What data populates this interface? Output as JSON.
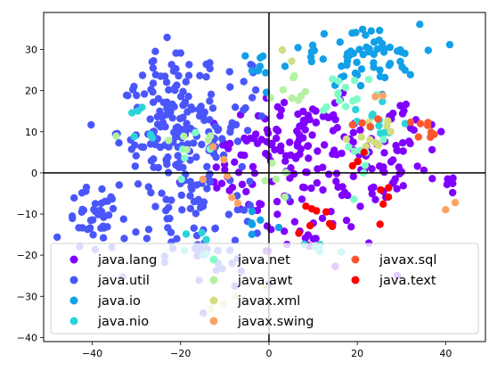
{
  "chart_data": {
    "type": "scatter",
    "title": "",
    "xlabel": "",
    "ylabel": "",
    "xlim": [
      -51,
      49
    ],
    "ylim": [
      -41,
      39
    ],
    "xticks": [
      -40,
      -20,
      0,
      20,
      40
    ],
    "yticks": [
      -40,
      -30,
      -20,
      -10,
      0,
      10,
      20,
      30
    ],
    "xtick_labels": [
      "−40",
      "−20",
      "0",
      "20",
      "40"
    ],
    "ytick_labels": [
      "−40",
      "−30",
      "−20",
      "−10",
      "0",
      "10",
      "20",
      "30"
    ],
    "reference_lines": {
      "vertical_x": 0,
      "horizontal_y": 0
    },
    "legend": {
      "placement": "lower-left",
      "columns": 3
    },
    "grid": false,
    "series": [
      {
        "name": "java.lang",
        "color": "#8000ff",
        "clusters": [
          {
            "cx": 2,
            "cy": 2,
            "sx": 7,
            "sy": 8,
            "n": 70
          },
          {
            "cx": 20,
            "cy": 2,
            "sx": 8,
            "sy": 6,
            "n": 70
          },
          {
            "cx": 8,
            "cy": 12,
            "sx": 6,
            "sy": 5,
            "n": 30
          },
          {
            "cx": 30,
            "cy": 12,
            "sx": 4,
            "sy": 5,
            "n": 20
          },
          {
            "cx": 10,
            "cy": -15,
            "sx": 7,
            "sy": 5,
            "n": 22
          },
          {
            "cx": -10,
            "cy": 2,
            "sx": 5,
            "sy": 6,
            "n": 15
          },
          {
            "cx": 42,
            "cy": -3,
            "sx": 2,
            "sy": 2,
            "n": 5
          }
        ]
      },
      {
        "name": "java.util",
        "color": "#4a56fb",
        "clusters": [
          {
            "cx": -20,
            "cy": 10,
            "sx": 7,
            "sy": 7,
            "n": 160
          },
          {
            "cx": -40,
            "cy": -12,
            "sx": 3,
            "sy": 4,
            "n": 40
          },
          {
            "cx": -15,
            "cy": -10,
            "sx": 8,
            "sy": 6,
            "n": 60
          },
          {
            "cx": -22,
            "cy": 25,
            "sx": 6,
            "sy": 3,
            "n": 20
          },
          {
            "cx": -5,
            "cy": 20,
            "sx": 3,
            "sy": 4,
            "n": 10
          },
          {
            "cx": -12,
            "cy": -22,
            "sx": 5,
            "sy": 3,
            "n": 15
          }
        ]
      },
      {
        "name": "java.io",
        "color": "#12a0e8",
        "clusters": [
          {
            "cx": 22,
            "cy": 28,
            "sx": 6,
            "sy": 4,
            "n": 55
          },
          {
            "cx": 12,
            "cy": 27,
            "sx": 4,
            "sy": 3,
            "n": 10
          },
          {
            "cx": -2,
            "cy": 25,
            "sx": 2,
            "sy": 3,
            "n": 8
          },
          {
            "cx": -3,
            "cy": -12,
            "sx": 3,
            "sy": 3,
            "n": 6
          }
        ]
      },
      {
        "name": "java.nio",
        "color": "#2ad4d9",
        "clusters": [
          {
            "cx": 24,
            "cy": 12,
            "sx": 4,
            "sy": 4,
            "n": 12
          },
          {
            "cx": -28,
            "cy": 12,
            "sx": 3,
            "sy": 4,
            "n": 6
          },
          {
            "cx": -14,
            "cy": -17,
            "sx": 3,
            "sy": 2,
            "n": 6
          },
          {
            "cx": 10,
            "cy": -18,
            "sx": 3,
            "sy": 2,
            "n": 5
          }
        ]
      },
      {
        "name": "java.net",
        "color": "#7ffbc8",
        "clusters": [
          {
            "cx": 18,
            "cy": 20,
            "sx": 4,
            "sy": 3,
            "n": 14
          },
          {
            "cx": 20,
            "cy": 5,
            "sx": 4,
            "sy": 4,
            "n": 8
          },
          {
            "cx": -15,
            "cy": 5,
            "sx": 4,
            "sy": 4,
            "n": 5
          }
        ]
      },
      {
        "name": "java.awt",
        "color": "#b4f1a1",
        "clusters": [
          {
            "cx": 6,
            "cy": 18,
            "sx": 3,
            "sy": 3,
            "n": 8
          },
          {
            "cx": -20,
            "cy": 8,
            "sx": 5,
            "sy": 4,
            "n": 6
          },
          {
            "cx": -1,
            "cy": -3,
            "sx": 3,
            "sy": 3,
            "n": 5
          }
        ]
      },
      {
        "name": "javax.xml",
        "color": "#d4dd80",
        "clusters": [
          {
            "cx": 24,
            "cy": 10,
            "sx": 3,
            "sy": 3,
            "n": 10
          },
          {
            "cx": 3,
            "cy": 30,
            "sx": 2,
            "sy": 2,
            "n": 2
          },
          {
            "cx": -8,
            "cy": -28,
            "sx": 3,
            "sy": 3,
            "n": 4
          }
        ]
      },
      {
        "name": "javax.swing",
        "color": "#f9a465",
        "clusters": [
          {
            "cx": -10,
            "cy": 2,
            "sx": 2,
            "sy": 3,
            "n": 4
          },
          {
            "cx": 40,
            "cy": -8,
            "sx": 1,
            "sy": 1,
            "n": 2
          },
          {
            "cx": 26,
            "cy": 20,
            "sx": 1,
            "sy": 1,
            "n": 2
          },
          {
            "cx": -7,
            "cy": -7,
            "sx": 1,
            "sy": 1,
            "n": 2
          }
        ]
      },
      {
        "name": "javax.sql",
        "color": "#ff5630",
        "clusters": [
          {
            "cx": 36,
            "cy": 11,
            "sx": 1.5,
            "sy": 1.2,
            "n": 8
          },
          {
            "cx": 21,
            "cy": 14,
            "sx": 2,
            "sy": 2,
            "n": 4
          }
        ]
      },
      {
        "name": "java.text",
        "color": "#ff0000",
        "clusters": [
          {
            "cx": 10,
            "cy": -12,
            "sx": 3,
            "sy": 3,
            "n": 8
          },
          {
            "cx": 24,
            "cy": -8,
            "sx": 3,
            "sy": 4,
            "n": 5
          },
          {
            "cx": 22,
            "cy": 3,
            "sx": 3,
            "sy": 2,
            "n": 4
          }
        ]
      }
    ]
  }
}
